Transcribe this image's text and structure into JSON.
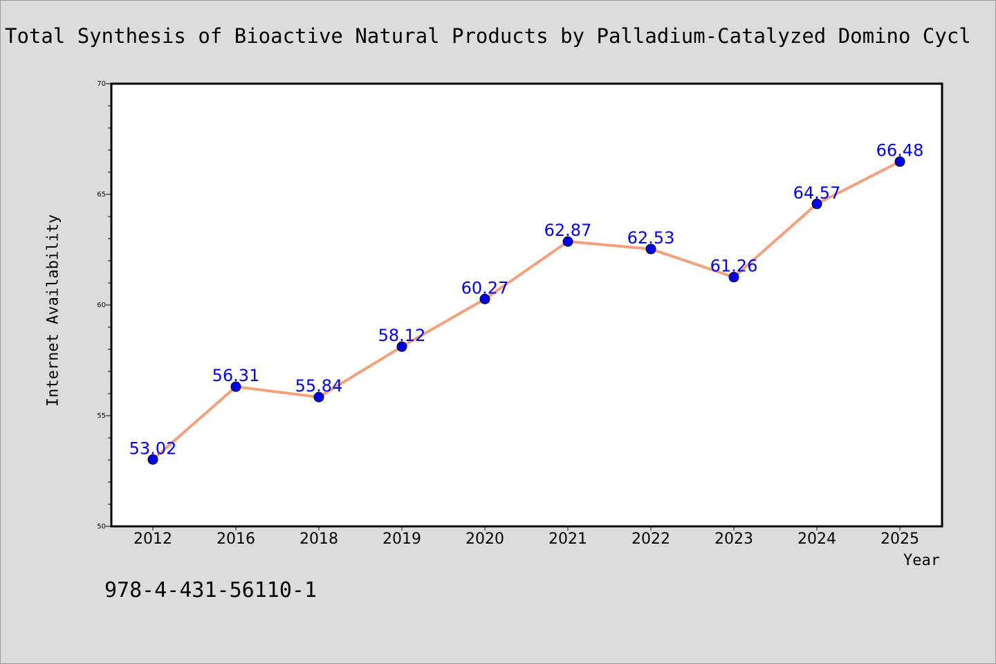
{
  "header": {
    "title": "Total Synthesis of Bioactive Natural Products by Palladium-Catalyzed Domino Cycl"
  },
  "footer": {
    "isbn": "978-4-431-56110-1"
  },
  "chart_data": {
    "type": "line",
    "title": "Total Synthesis of Bioactive Natural Products by Palladium-Catalyzed Domino Cycl",
    "xlabel": "Year",
    "ylabel": "Internet Availability",
    "categories": [
      "2012",
      "2016",
      "2018",
      "2019",
      "2020",
      "2021",
      "2022",
      "2023",
      "2024",
      "2025"
    ],
    "values": [
      53.02,
      56.31,
      55.84,
      58.12,
      60.27,
      62.87,
      62.53,
      61.26,
      64.57,
      66.48
    ],
    "value_labels": [
      "53.02",
      "56.31",
      "55.84",
      "58.12",
      "60.27",
      "62.87",
      "62.53",
      "61.26",
      "64.57",
      "66.48"
    ],
    "ylim": [
      50,
      70
    ],
    "yticks": [
      "50",
      "55",
      "60",
      "65",
      "70"
    ],
    "grid": false,
    "legend": "none",
    "colors": {
      "line": "#f4a07a",
      "marker": "#0000ee",
      "label": "#0000ee"
    }
  }
}
